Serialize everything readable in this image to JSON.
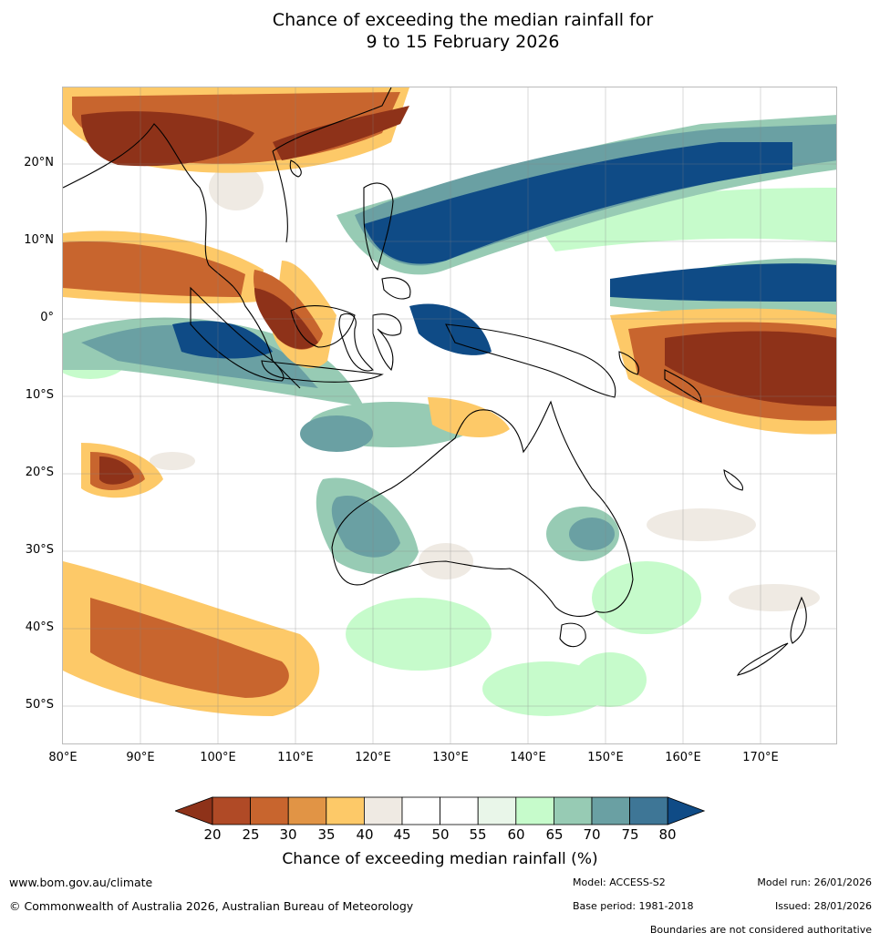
{
  "title_line1": "Chance of exceeding the median rainfall for",
  "title_line2": "9 to 15 February 2026",
  "lat_labels": [
    "20°N",
    "10°N",
    "0°",
    "10°S",
    "20°S",
    "30°S",
    "40°S",
    "50°S"
  ],
  "lon_labels": [
    "80°E",
    "90°E",
    "100°E",
    "110°E",
    "120°E",
    "130°E",
    "140°E",
    "150°E",
    "160°E",
    "170°E"
  ],
  "colorbar": {
    "title": "Chance of exceeding median rainfall (%)",
    "levels": [
      "20",
      "25",
      "30",
      "35",
      "40",
      "45",
      "50",
      "55",
      "60",
      "65",
      "70",
      "75",
      "80"
    ],
    "colors": [
      "#8e3219",
      "#b04a26",
      "#c8652e",
      "#e19445",
      "#fdc968",
      "#efeae3",
      "#ffffff",
      "#ffffff",
      "#e9f6e9",
      "#c6fbcb",
      "#97cbb4",
      "#6aa0a3",
      "#3e7696",
      "#0f4b86"
    ]
  },
  "footer": {
    "website": "www.bom.gov.au/climate",
    "copyright": "© Commonwealth of Australia 2026, Australian Bureau of Meteorology",
    "model": "Model: ACCESS-S2",
    "base_period": "Base period: 1981-2018",
    "model_run": "Model run: 26/01/2026",
    "issued": "Issued: 28/01/2026",
    "disclaimer": "Boundaries are not considered authoritative"
  }
}
